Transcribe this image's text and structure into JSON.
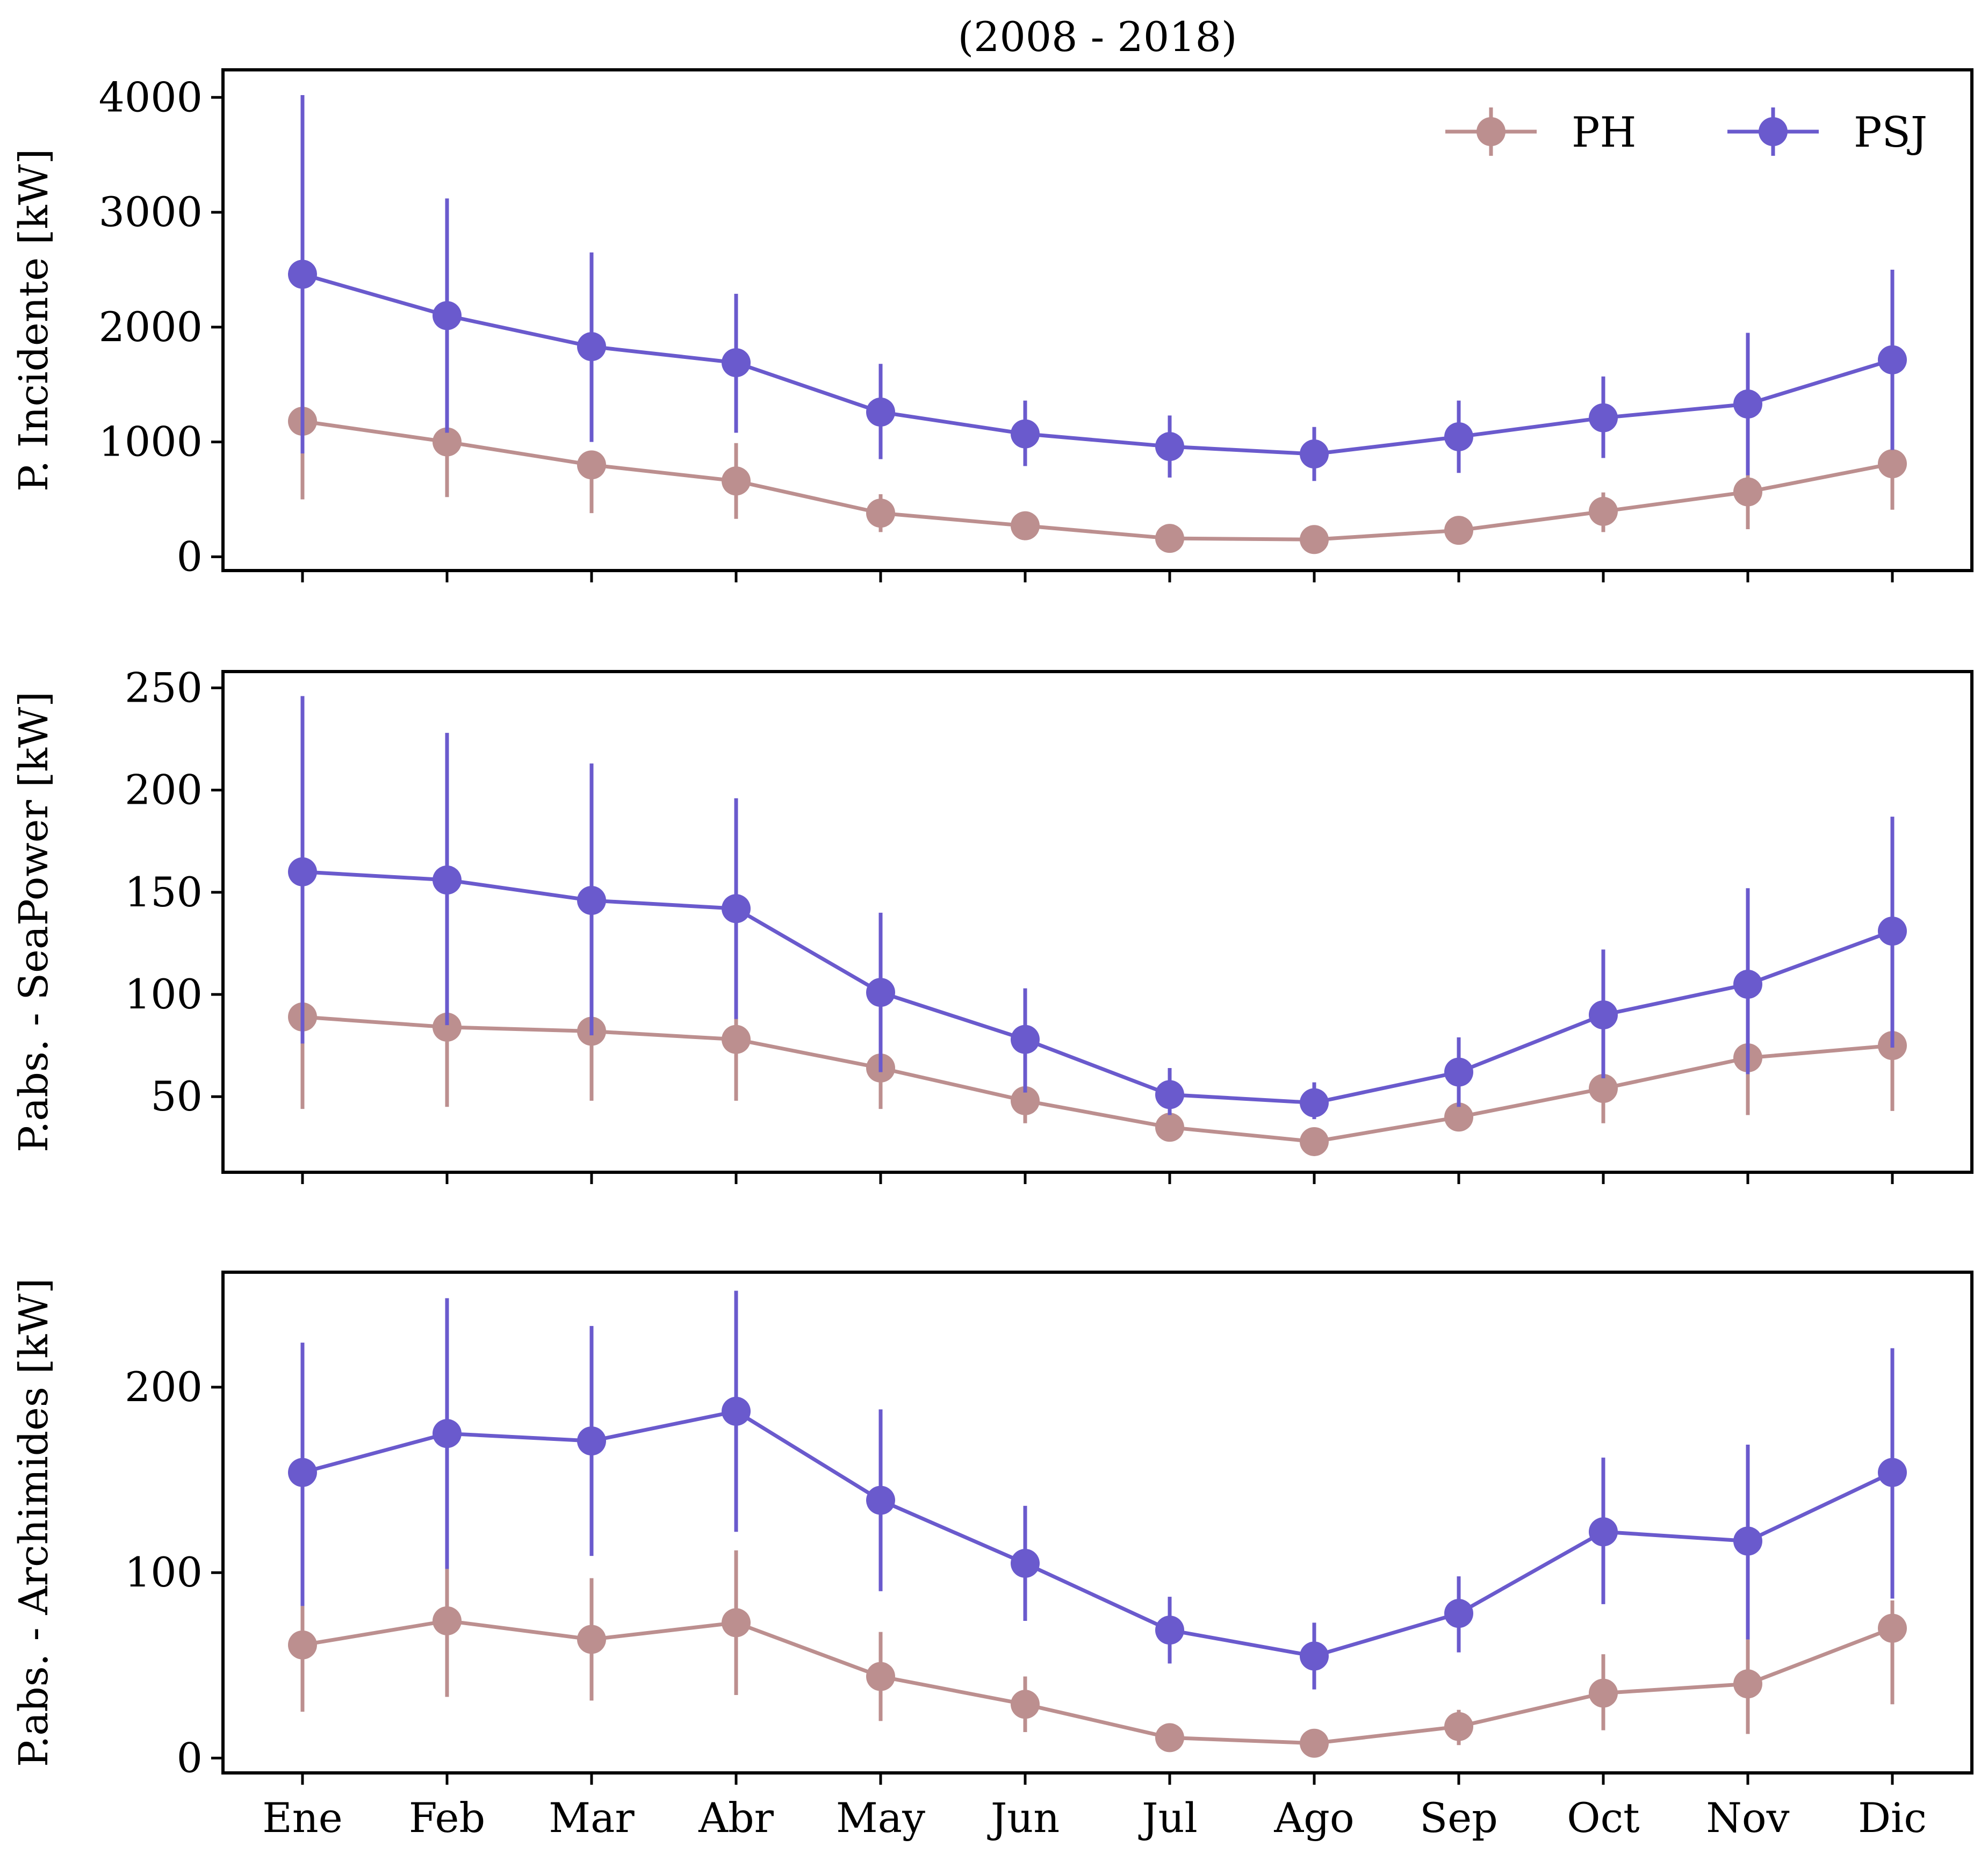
{
  "chart_data": [
    {
      "type": "line",
      "title": "(2008 - 2018)",
      "ylabel": "P. Incidente [kW]",
      "xlabel": "",
      "categories": [
        "Ene",
        "Feb",
        "Mar",
        "Abr",
        "May",
        "Jun",
        "Jul",
        "Ago",
        "Sep",
        "Oct",
        "Nov",
        "Dic"
      ],
      "ylim": [
        -120,
        4240
      ],
      "yticks": [
        0,
        1000,
        2000,
        3000,
        4000
      ],
      "legend": "top-right",
      "grid": false,
      "series": [
        {
          "name": "PH",
          "color": "#bc8f8f",
          "values": [
            1180,
            1000,
            800,
            660,
            380,
            270,
            160,
            150,
            230,
            395,
            565,
            810
          ],
          "err_low": [
            500,
            520,
            380,
            330,
            215,
            195,
            125,
            120,
            190,
            215,
            240,
            410
          ],
          "err_high": [
            920,
            1050,
            840,
            990,
            545,
            355,
            205,
            185,
            275,
            560,
            860,
            1185
          ]
        },
        {
          "name": "PSJ",
          "color": "#6a5acd",
          "values": [
            2460,
            2100,
            1830,
            1690,
            1260,
            1070,
            960,
            895,
            1045,
            1210,
            1330,
            1715
          ],
          "err_low": [
            900,
            1080,
            1000,
            1080,
            850,
            790,
            690,
            660,
            730,
            860,
            710,
            930
          ],
          "err_high": [
            4020,
            3120,
            2650,
            2290,
            1680,
            1360,
            1230,
            1130,
            1360,
            1570,
            1950,
            2500
          ]
        }
      ]
    },
    {
      "type": "line",
      "title": "",
      "ylabel": "P.abs. - SeaPower [kW]",
      "xlabel": "",
      "categories": [
        "Ene",
        "Feb",
        "Mar",
        "Abr",
        "May",
        "Jun",
        "Jul",
        "Ago",
        "Sep",
        "Oct",
        "Nov",
        "Dic"
      ],
      "ylim": [
        13,
        258
      ],
      "yticks": [
        50,
        100,
        150,
        200,
        250
      ],
      "grid": false,
      "series": [
        {
          "name": "PH",
          "color": "#bc8f8f",
          "values": [
            89,
            84,
            82,
            78,
            64,
            48,
            35,
            28,
            40,
            54,
            69,
            75
          ],
          "err_low": [
            44,
            45,
            48,
            48,
            44,
            37,
            29,
            25,
            33,
            37,
            41,
            43
          ],
          "err_high": [
            130,
            120,
            115,
            108,
            82,
            60,
            41,
            33,
            46,
            72,
            98,
            106
          ]
        },
        {
          "name": "PSJ",
          "color": "#6a5acd",
          "values": [
            160,
            156,
            146,
            142,
            101,
            78,
            51,
            47,
            62,
            90,
            105,
            131
          ],
          "err_low": [
            76,
            85,
            80,
            88,
            62,
            52,
            41,
            39,
            45,
            59,
            61,
            74
          ],
          "err_high": [
            246,
            228,
            213,
            196,
            140,
            103,
            64,
            57,
            79,
            122,
            152,
            187
          ]
        }
      ]
    },
    {
      "type": "line",
      "title": "",
      "ylabel": "P.abs. - Archimides [kW]",
      "xlabel": "",
      "categories": [
        "Ene",
        "Feb",
        "Mar",
        "Abr",
        "May",
        "Jun",
        "Jul",
        "Ago",
        "Sep",
        "Oct",
        "Nov",
        "Dic"
      ],
      "ylim": [
        -8,
        262
      ],
      "yticks": [
        0,
        100,
        200
      ],
      "grid": false,
      "series": [
        {
          "name": "PH",
          "color": "#bc8f8f",
          "values": [
            61,
            74,
            64,
            73,
            44,
            29,
            11,
            8,
            17,
            35,
            40,
            70
          ],
          "err_low": [
            25,
            33,
            31,
            34,
            20,
            14,
            8,
            5,
            7,
            15,
            13,
            29
          ],
          "err_high": [
            82,
            103,
            97,
            112,
            68,
            44,
            15,
            11,
            26,
            56,
            65,
            85
          ]
        },
        {
          "name": "PSJ",
          "color": "#6a5acd",
          "values": [
            154,
            175,
            171,
            187,
            139,
            105,
            69,
            55,
            78,
            122,
            117,
            154
          ],
          "err_low": [
            82,
            102,
            109,
            122,
            90,
            74,
            51,
            37,
            57,
            83,
            64,
            86
          ],
          "err_high": [
            224,
            248,
            233,
            252,
            188,
            136,
            87,
            73,
            98,
            162,
            169,
            221
          ]
        }
      ]
    }
  ]
}
